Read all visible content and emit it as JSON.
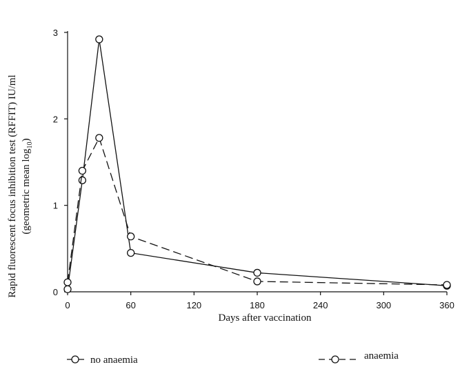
{
  "chart_data": {
    "type": "line",
    "title": "",
    "xlabel": "Days after vaccination",
    "ylabel_line1": "Rapid fluorescent focus inhibition test (RFFIT) IU/ml",
    "ylabel_line2_prefix": "(geometric mean log",
    "ylabel_line2_sub": "10",
    "ylabel_line2_suffix": ")",
    "xlim": [
      0,
      360
    ],
    "ylim": [
      0,
      3
    ],
    "xticks": [
      0,
      60,
      120,
      180,
      240,
      300,
      360
    ],
    "yticks": [
      0,
      1,
      2,
      3
    ],
    "grid": false,
    "legend_position": "bottom",
    "series": [
      {
        "name": "no anaemia",
        "line_style": "solid",
        "color": "#111111",
        "x": [
          0,
          14,
          30,
          60,
          180,
          360
        ],
        "y": [
          0.03,
          1.29,
          2.92,
          0.45,
          0.22,
          0.07
        ]
      },
      {
        "name": "anaemia",
        "line_style": "dashed",
        "color": "#111111",
        "x": [
          0,
          14,
          30,
          60,
          180,
          360
        ],
        "y": [
          0.11,
          1.4,
          1.78,
          0.64,
          0.12,
          0.08
        ]
      }
    ]
  }
}
